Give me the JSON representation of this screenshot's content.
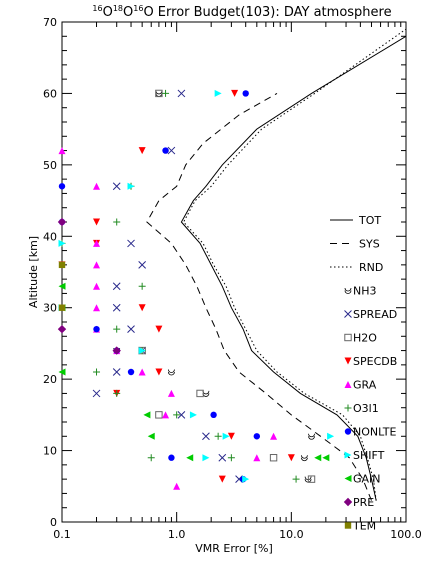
{
  "chart_data": {
    "type": "line",
    "title_parts": [
      {
        "sup": "16",
        "t": "O"
      },
      {
        "sup": "18",
        "t": "O"
      },
      {
        "sup": "16",
        "t": "O Error Budget(103): DAY atmosphere"
      }
    ],
    "xlabel": "VMR Error [%]",
    "ylabel": "Altitude [km]",
    "xscale": "log",
    "xlim": [
      0.1,
      100.0
    ],
    "ylim": [
      0,
      70
    ],
    "xticks": [
      0.1,
      1.0,
      10.0,
      100.0
    ],
    "xtick_labels": [
      "0.1",
      "1.0",
      "10.0",
      "100.0"
    ],
    "yticks": [
      0,
      10,
      20,
      30,
      40,
      50,
      60,
      70
    ],
    "ytick_labels": [
      "0",
      "10",
      "20",
      "30",
      "40",
      "50",
      "60",
      "70"
    ],
    "grid": false,
    "legend_position": "right",
    "lines": [
      {
        "name": "TOT",
        "dash": "solid",
        "points": [
          [
            55,
            3
          ],
          [
            50,
            6
          ],
          [
            45,
            9
          ],
          [
            38,
            12
          ],
          [
            25,
            15
          ],
          [
            12,
            18
          ],
          [
            7,
            21
          ],
          [
            4.5,
            24
          ],
          [
            3.8,
            27
          ],
          [
            3,
            30
          ],
          [
            2.5,
            33
          ],
          [
            2,
            36
          ],
          [
            1.6,
            39
          ],
          [
            1.1,
            42
          ],
          [
            1.4,
            45
          ],
          [
            1.8,
            47
          ],
          [
            2.5,
            50
          ],
          [
            5,
            55
          ],
          [
            15,
            60
          ],
          [
            100,
            68
          ]
        ]
      },
      {
        "name": "SYS",
        "dash": "dashed",
        "points": [
          [
            50,
            3
          ],
          [
            42,
            6
          ],
          [
            32,
            9
          ],
          [
            18,
            12
          ],
          [
            10,
            15
          ],
          [
            6,
            18
          ],
          [
            3.5,
            21
          ],
          [
            2.6,
            24
          ],
          [
            2.2,
            27
          ],
          [
            1.8,
            30
          ],
          [
            1.5,
            33
          ],
          [
            1.2,
            36
          ],
          [
            0.9,
            39
          ],
          [
            0.55,
            42
          ],
          [
            0.7,
            45
          ],
          [
            1,
            47
          ],
          [
            1.2,
            50
          ],
          [
            1.7,
            53
          ],
          [
            3.5,
            57
          ],
          [
            7.5,
            60
          ]
        ]
      },
      {
        "name": "RND",
        "dash": "dotted",
        "points": [
          [
            55,
            3
          ],
          [
            52,
            6
          ],
          [
            46,
            9
          ],
          [
            40,
            12
          ],
          [
            28,
            15
          ],
          [
            13,
            18
          ],
          [
            7.5,
            21
          ],
          [
            5,
            24
          ],
          [
            4,
            27
          ],
          [
            3.2,
            30
          ],
          [
            2.7,
            33
          ],
          [
            2.1,
            36
          ],
          [
            1.7,
            39
          ],
          [
            1.15,
            42
          ],
          [
            1.45,
            45
          ],
          [
            2,
            47
          ],
          [
            2.8,
            50
          ],
          [
            5.5,
            55
          ],
          [
            16,
            60
          ],
          [
            100,
            69
          ]
        ]
      }
    ],
    "marker_series": [
      {
        "name": "NH3",
        "marker": "nh3",
        "color": "#000000",
        "points": [
          [
            0.7,
            60
          ],
          [
            0.3,
            24
          ],
          [
            0.9,
            21
          ],
          [
            1.8,
            18
          ],
          [
            15,
            12
          ],
          [
            13,
            9
          ],
          [
            14,
            6
          ]
        ]
      },
      {
        "name": "SPREAD",
        "marker": "x",
        "color": "#2a2a8c",
        "points": [
          [
            1.1,
            60
          ],
          [
            0.9,
            52
          ],
          [
            0.3,
            47
          ],
          [
            0.4,
            39
          ],
          [
            0.5,
            36
          ],
          [
            0.3,
            33
          ],
          [
            0.3,
            30
          ],
          [
            0.4,
            27
          ],
          [
            0.5,
            24
          ],
          [
            0.3,
            21
          ],
          [
            0.2,
            18
          ],
          [
            1.1,
            15
          ],
          [
            1.8,
            12
          ],
          [
            2.5,
            9
          ],
          [
            3.5,
            6
          ]
        ]
      },
      {
        "name": "H2O",
        "marker": "square",
        "color": "#666666",
        "points": [
          [
            0.7,
            60
          ],
          [
            0.5,
            24
          ],
          [
            0.7,
            15
          ],
          [
            1.6,
            18
          ],
          [
            7,
            9
          ],
          [
            15,
            6
          ]
        ]
      },
      {
        "name": "SPECDB",
        "marker": "tri-down",
        "color": "#ff0000",
        "points": [
          [
            3.2,
            60
          ],
          [
            0.5,
            52
          ],
          [
            0.2,
            42
          ],
          [
            0.2,
            39
          ],
          [
            0.1,
            36
          ],
          [
            0.5,
            30
          ],
          [
            0.7,
            27
          ],
          [
            0.7,
            21
          ],
          [
            0.3,
            18
          ],
          [
            3,
            12
          ],
          [
            10,
            9
          ],
          [
            2.5,
            6
          ]
        ]
      },
      {
        "name": "GRA",
        "marker": "tri-up",
        "color": "#ff00ff",
        "points": [
          [
            0.1,
            52
          ],
          [
            0.2,
            47
          ],
          [
            0.2,
            39
          ],
          [
            0.2,
            36
          ],
          [
            0.2,
            33
          ],
          [
            0.2,
            30
          ],
          [
            0.2,
            27
          ],
          [
            0.3,
            24
          ],
          [
            0.5,
            21
          ],
          [
            0.9,
            18
          ],
          [
            0.8,
            15
          ],
          [
            7,
            12
          ],
          [
            5,
            9
          ],
          [
            1,
            5
          ]
        ]
      },
      {
        "name": "O3l1",
        "marker": "plus",
        "color": "#228b22",
        "points": [
          [
            0.8,
            60
          ],
          [
            0.4,
            47
          ],
          [
            0.3,
            42
          ],
          [
            0.1,
            39
          ],
          [
            0.5,
            33
          ],
          [
            0.3,
            27
          ],
          [
            0.5,
            24
          ],
          [
            0.2,
            21
          ],
          [
            0.3,
            18
          ],
          [
            1.0,
            15
          ],
          [
            2.3,
            12
          ],
          [
            0.6,
            9
          ],
          [
            3,
            9
          ],
          [
            11,
            6
          ]
        ]
      },
      {
        "name": "NONLTE",
        "marker": "circle",
        "color": "#0000ff",
        "points": [
          [
            4,
            60
          ],
          [
            0.8,
            52
          ],
          [
            0.1,
            47
          ],
          [
            0.1,
            42
          ],
          [
            0.2,
            27
          ],
          [
            0.3,
            24
          ],
          [
            0.4,
            21
          ],
          [
            2.1,
            15
          ],
          [
            5,
            12
          ],
          [
            0.9,
            9
          ],
          [
            3.8,
            6
          ]
        ]
      },
      {
        "name": "SHIFT",
        "marker": "tri-right",
        "color": "#00ffff",
        "points": [
          [
            2.3,
            60
          ],
          [
            0.4,
            47
          ],
          [
            0.1,
            39
          ],
          [
            0.1,
            30
          ],
          [
            0.5,
            24
          ],
          [
            1.4,
            15
          ],
          [
            2.7,
            12
          ],
          [
            1.8,
            9
          ],
          [
            4,
            6
          ],
          [
            22,
            12
          ]
        ]
      },
      {
        "name": "GAIN",
        "marker": "tri-left",
        "color": "#00cc00",
        "points": [
          [
            0.1,
            33
          ],
          [
            0.1,
            30
          ],
          [
            0.1,
            21
          ],
          [
            0.55,
            15
          ],
          [
            0.6,
            12
          ],
          [
            1.3,
            9
          ],
          [
            17,
            9
          ],
          [
            20,
            9
          ]
        ]
      },
      {
        "name": "PRE",
        "marker": "diamond",
        "color": "#800080",
        "points": [
          [
            0.1,
            42
          ],
          [
            0.1,
            27
          ],
          [
            0.3,
            24
          ]
        ]
      },
      {
        "name": "TEM",
        "marker": "square-filled",
        "color": "#808000",
        "points": [
          [
            0.1,
            36
          ],
          [
            0.1,
            30
          ]
        ]
      }
    ]
  }
}
